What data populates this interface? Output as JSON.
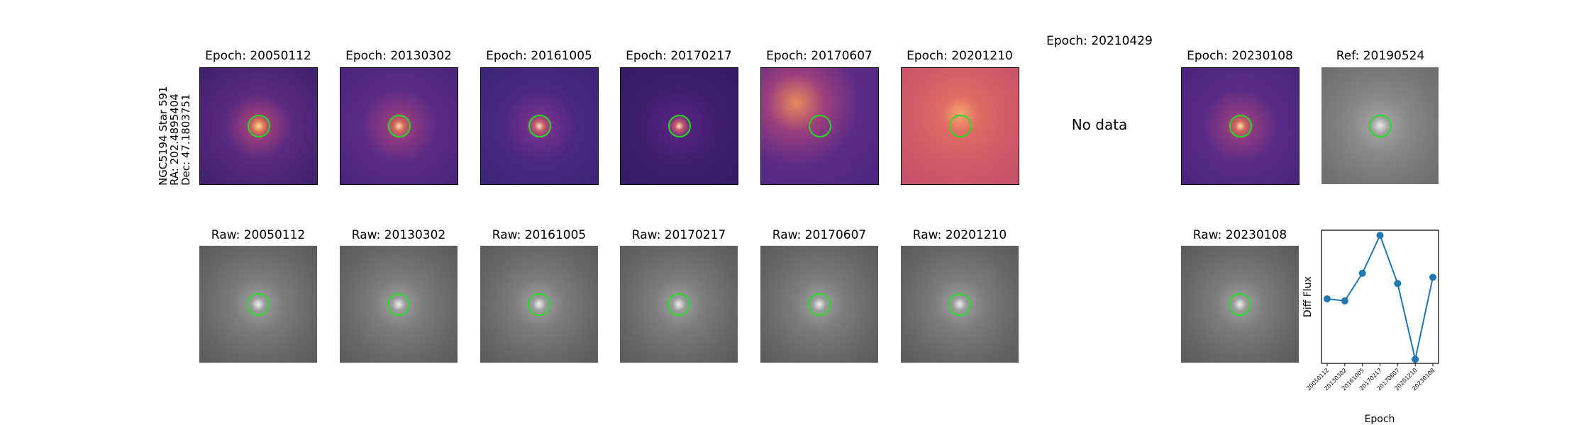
{
  "row_label": {
    "line1": "NGC5194 Star 591",
    "line2": "RA: 202.4895404",
    "line3": "Dec: 47.1803751"
  },
  "diff_panels": [
    {
      "title": "Epoch: 20050112"
    },
    {
      "title": "Epoch: 20130302"
    },
    {
      "title": "Epoch: 20161005"
    },
    {
      "title": "Epoch: 20170217"
    },
    {
      "title": "Epoch: 20170607"
    },
    {
      "title": "Epoch: 20201210"
    },
    {
      "title": "Epoch: 20210429",
      "no_data": "No data"
    },
    {
      "title": "Epoch: 20230108"
    }
  ],
  "ref_panel": {
    "title": "Ref: 20190524"
  },
  "raw_panels": [
    {
      "title": "Raw: 20050112"
    },
    {
      "title": "Raw: 20130302"
    },
    {
      "title": "Raw: 20161005"
    },
    {
      "title": "Raw: 20170217"
    },
    {
      "title": "Raw: 20170607"
    },
    {
      "title": "Raw: 20201210"
    },
    {
      "title": "Raw: 20230108"
    }
  ],
  "colors": {
    "aperture": "#22dd22",
    "series": "#1f77b4"
  },
  "chart_data": {
    "type": "line",
    "categories": [
      "20050112",
      "20130302",
      "20161005",
      "20170217",
      "20170607",
      "20201210",
      "20230108"
    ],
    "values": [
      0.38,
      0.36,
      0.63,
      1.0,
      0.53,
      -0.21,
      0.59
    ],
    "xlabel": "Epoch",
    "ylabel": "Diff Flux",
    "ylim": [
      -0.25,
      1.05
    ],
    "yticks_shown": false,
    "grid": false,
    "marker": "circle"
  }
}
